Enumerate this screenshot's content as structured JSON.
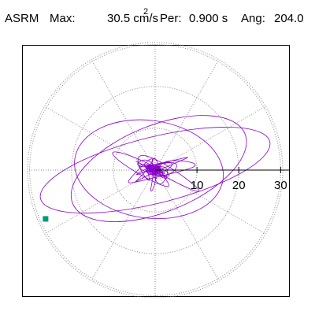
{
  "header": {
    "title": "ASRM",
    "max_label": "Max:",
    "max_value": "30.5 cm/s",
    "max_unit_sup": "2",
    "per_label": "Per:",
    "per_value": "0.900 s",
    "ang_label": "Ang:",
    "ang_value": "204.0"
  },
  "chart_data": {
    "type": "scatter",
    "description_type": "polar orbit plot",
    "radial_ticks": [
      "10",
      "20",
      "30"
    ],
    "radial_tick_values": [
      10,
      20,
      30
    ],
    "r_max": 30.5,
    "grid": true,
    "grid_spokes_deg": [
      0,
      30,
      60,
      90,
      120,
      150,
      180,
      210,
      240,
      270,
      300,
      330
    ],
    "colors": {
      "trace": "#8b00cc",
      "grid": "#888888",
      "axis": "#000000",
      "marker": "#009977"
    },
    "max_angle_deg": 204.0
  }
}
